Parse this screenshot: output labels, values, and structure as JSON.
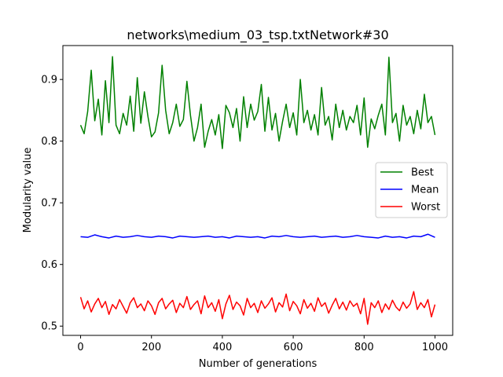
{
  "chart_data": {
    "type": "line",
    "title": "networks\\medium_03_tsp.txtNetwork#30",
    "xlabel": "Number of generations",
    "ylabel": "Modularity value",
    "xlim": [
      -50,
      1050
    ],
    "ylim": [
      0.485,
      0.955
    ],
    "xticks": [
      0,
      200,
      400,
      600,
      800,
      1000
    ],
    "yticks": [
      0.5,
      0.6,
      0.7,
      0.8,
      0.9
    ],
    "xtick_labels": [
      "0",
      "200",
      "400",
      "600",
      "800",
      "1000"
    ],
    "ytick_labels": [
      "0.5",
      "0.6",
      "0.7",
      "0.8",
      "0.9"
    ],
    "grid": false,
    "legend_position": "center-right",
    "series": [
      {
        "name": "Best",
        "color": "#008000",
        "x": [
          0,
          10,
          20,
          30,
          40,
          50,
          60,
          70,
          80,
          90,
          100,
          110,
          120,
          130,
          140,
          150,
          160,
          170,
          180,
          190,
          200,
          210,
          220,
          230,
          240,
          250,
          260,
          270,
          280,
          290,
          300,
          310,
          320,
          330,
          340,
          350,
          360,
          370,
          380,
          390,
          400,
          410,
          420,
          430,
          440,
          450,
          460,
          470,
          480,
          490,
          500,
          510,
          520,
          530,
          540,
          550,
          560,
          570,
          580,
          590,
          600,
          610,
          620,
          630,
          640,
          650,
          660,
          670,
          680,
          690,
          700,
          710,
          720,
          730,
          740,
          750,
          760,
          770,
          780,
          790,
          800,
          810,
          820,
          830,
          840,
          850,
          860,
          870,
          880,
          890,
          900,
          910,
          920,
          930,
          940,
          950,
          960,
          970,
          980,
          990,
          1000
        ],
        "values": [
          0.826,
          0.812,
          0.848,
          0.915,
          0.833,
          0.868,
          0.81,
          0.898,
          0.83,
          0.937,
          0.826,
          0.812,
          0.845,
          0.826,
          0.873,
          0.816,
          0.903,
          0.829,
          0.88,
          0.84,
          0.807,
          0.815,
          0.846,
          0.923,
          0.85,
          0.812,
          0.83,
          0.86,
          0.824,
          0.835,
          0.897,
          0.842,
          0.8,
          0.822,
          0.86,
          0.79,
          0.816,
          0.835,
          0.81,
          0.843,
          0.788,
          0.858,
          0.846,
          0.822,
          0.853,
          0.8,
          0.872,
          0.822,
          0.86,
          0.834,
          0.848,
          0.892,
          0.816,
          0.871,
          0.818,
          0.845,
          0.8,
          0.832,
          0.86,
          0.822,
          0.846,
          0.81,
          0.9,
          0.83,
          0.85,
          0.818,
          0.843,
          0.81,
          0.887,
          0.826,
          0.84,
          0.802,
          0.86,
          0.822,
          0.85,
          0.818,
          0.84,
          0.83,
          0.858,
          0.81,
          0.87,
          0.79,
          0.836,
          0.82,
          0.842,
          0.86,
          0.81,
          0.936,
          0.83,
          0.845,
          0.8,
          0.858,
          0.826,
          0.84,
          0.812,
          0.85,
          0.82,
          0.876,
          0.83,
          0.84,
          0.81
        ]
      },
      {
        "name": "Mean",
        "color": "#0000ff",
        "x": [
          0,
          20,
          40,
          60,
          80,
          100,
          120,
          140,
          160,
          180,
          200,
          220,
          240,
          260,
          280,
          300,
          320,
          340,
          360,
          380,
          400,
          420,
          440,
          460,
          480,
          500,
          520,
          540,
          560,
          580,
          600,
          620,
          640,
          660,
          680,
          700,
          720,
          740,
          760,
          780,
          800,
          820,
          840,
          860,
          880,
          900,
          920,
          940,
          960,
          980,
          1000
        ],
        "values": [
          0.645,
          0.644,
          0.648,
          0.645,
          0.643,
          0.646,
          0.644,
          0.645,
          0.647,
          0.645,
          0.644,
          0.646,
          0.645,
          0.643,
          0.646,
          0.645,
          0.644,
          0.645,
          0.646,
          0.644,
          0.645,
          0.643,
          0.646,
          0.645,
          0.644,
          0.645,
          0.643,
          0.646,
          0.645,
          0.647,
          0.645,
          0.644,
          0.645,
          0.646,
          0.644,
          0.645,
          0.646,
          0.644,
          0.645,
          0.647,
          0.645,
          0.644,
          0.643,
          0.646,
          0.644,
          0.645,
          0.643,
          0.646,
          0.645,
          0.649,
          0.644
        ]
      },
      {
        "name": "Worst",
        "color": "#ff0000",
        "x": [
          0,
          10,
          20,
          30,
          40,
          50,
          60,
          70,
          80,
          90,
          100,
          110,
          120,
          130,
          140,
          150,
          160,
          170,
          180,
          190,
          200,
          210,
          220,
          230,
          240,
          250,
          260,
          270,
          280,
          290,
          300,
          310,
          320,
          330,
          340,
          350,
          360,
          370,
          380,
          390,
          400,
          410,
          420,
          430,
          440,
          450,
          460,
          470,
          480,
          490,
          500,
          510,
          520,
          530,
          540,
          550,
          560,
          570,
          580,
          590,
          600,
          610,
          620,
          630,
          640,
          650,
          660,
          670,
          680,
          690,
          700,
          710,
          720,
          730,
          740,
          750,
          760,
          770,
          780,
          790,
          800,
          810,
          820,
          830,
          840,
          850,
          860,
          870,
          880,
          890,
          900,
          910,
          920,
          930,
          940,
          950,
          960,
          970,
          980,
          990,
          1000
        ],
        "values": [
          0.547,
          0.528,
          0.541,
          0.523,
          0.536,
          0.545,
          0.53,
          0.54,
          0.519,
          0.535,
          0.528,
          0.543,
          0.532,
          0.521,
          0.538,
          0.546,
          0.53,
          0.536,
          0.525,
          0.541,
          0.533,
          0.519,
          0.538,
          0.545,
          0.528,
          0.536,
          0.542,
          0.522,
          0.537,
          0.53,
          0.548,
          0.527,
          0.535,
          0.541,
          0.52,
          0.549,
          0.53,
          0.538,
          0.524,
          0.543,
          0.512,
          0.536,
          0.55,
          0.527,
          0.539,
          0.533,
          0.518,
          0.545,
          0.53,
          0.537,
          0.522,
          0.541,
          0.529,
          0.536,
          0.546,
          0.523,
          0.538,
          0.531,
          0.552,
          0.525,
          0.54,
          0.533,
          0.52,
          0.543,
          0.529,
          0.537,
          0.524,
          0.546,
          0.532,
          0.538,
          0.521,
          0.534,
          0.545,
          0.528,
          0.539,
          0.526,
          0.541,
          0.532,
          0.537,
          0.52,
          0.545,
          0.503,
          0.538,
          0.53,
          0.541,
          0.522,
          0.536,
          0.527,
          0.542,
          0.531,
          0.525,
          0.539,
          0.529,
          0.536,
          0.556,
          0.527,
          0.538,
          0.53,
          0.543,
          0.515,
          0.535
        ]
      }
    ]
  }
}
